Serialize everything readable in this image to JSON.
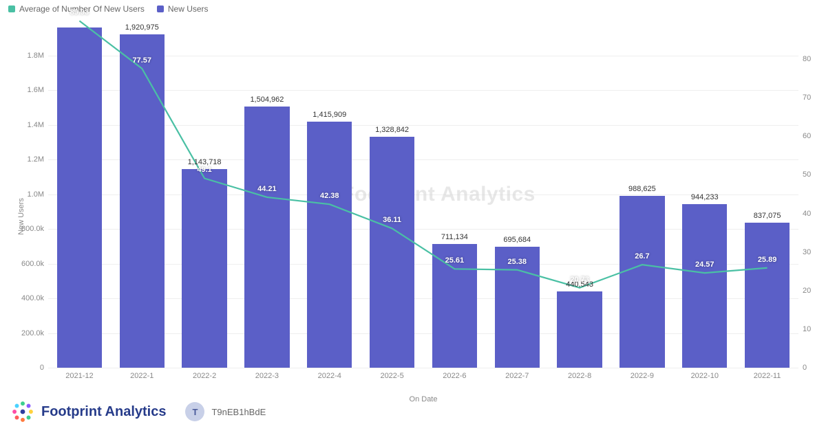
{
  "legend": {
    "series1": {
      "label": "Average of Number Of New Users",
      "color": "#4ac0a4"
    },
    "series2": {
      "label": "New Users",
      "color": "#5b5fc7"
    }
  },
  "chart": {
    "type": "bar_line_combo",
    "x_label": "On Date",
    "y_left_label": "New Users",
    "y_left_max": 2000000,
    "y_left_min": 0,
    "y_left_ticks": [
      "0",
      "200.0k",
      "400.0k",
      "600.0k",
      "800.0k",
      "1.0M",
      "1.2M",
      "1.4M",
      "1.6M",
      "1.8M"
    ],
    "y_left_tick_values": [
      0,
      200000,
      400000,
      600000,
      800000,
      1000000,
      1200000,
      1400000,
      1600000,
      1800000
    ],
    "y_right_max": 90,
    "y_right_min": 0,
    "y_right_ticks": [
      "0",
      "10",
      "20",
      "30",
      "40",
      "50",
      "60",
      "70",
      "80"
    ],
    "y_right_tick_values": [
      0,
      10,
      20,
      30,
      40,
      50,
      60,
      70,
      80
    ],
    "categories": [
      "2021-12",
      "2022-1",
      "2022-2",
      "2022-3",
      "2022-4",
      "2022-5",
      "2022-6",
      "2022-7",
      "2022-8",
      "2022-9",
      "2022-10",
      "2022-11"
    ],
    "bar_values": [
      1960000,
      1920975,
      1143718,
      1504962,
      1415909,
      1328842,
      711134,
      695684,
      440543,
      988625,
      944233,
      837075
    ],
    "bar_labels": [
      "",
      "1,920,975",
      "1,143,718",
      "1,504,962",
      "1,415,909",
      "1,328,842",
      "711,134",
      "695,684",
      "440,543",
      "988,625",
      "944,233",
      "837,075"
    ],
    "line_values": [
      89.93,
      77.57,
      49.1,
      44.21,
      42.38,
      36.11,
      25.61,
      25.38,
      20.73,
      26.7,
      24.57,
      25.89
    ],
    "line_labels": [
      "89.93",
      "77.57",
      "49.1",
      "44.21",
      "42.38",
      "36.11",
      "25.61",
      "25.38",
      "20.73",
      "26.7",
      "24.57",
      "25.89"
    ],
    "bar_color": "#5b5fc7",
    "line_color": "#4ac0a4",
    "line_width": 2.2,
    "bar_width_ratio": 0.72,
    "background_color": "#ffffff",
    "grid_color": "#eeeeee",
    "watermark": "Footprint Analytics"
  },
  "footer": {
    "brand": "Footprint Analytics",
    "avatar_initial": "T",
    "username": "T9nEB1hBdE"
  }
}
